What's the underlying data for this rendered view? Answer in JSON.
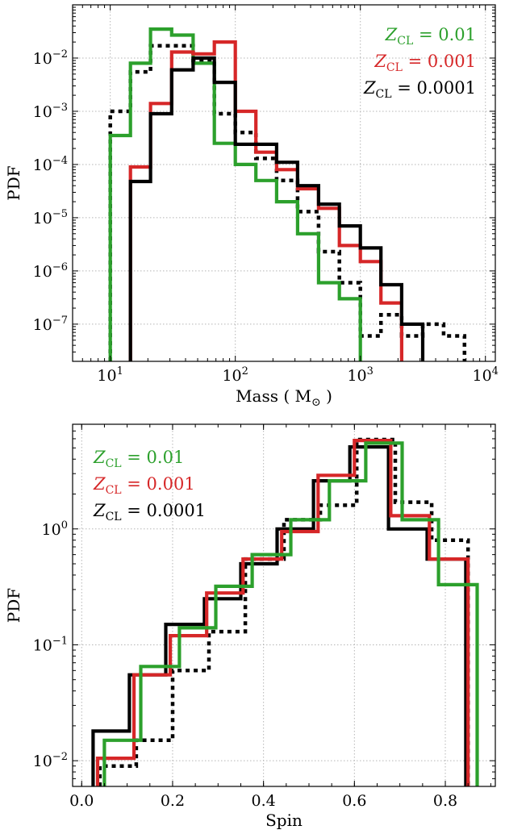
{
  "chart_data": [
    {
      "type": "line",
      "subtype": "step-histogram",
      "xlabel": "Mass ( M",
      "xlabel_sub": "⊙",
      "xlabel_close": " )",
      "ylabel": "PDF",
      "xscale": "log",
      "yscale": "log",
      "xlim": [
        5,
        12000
      ],
      "ylim": [
        2e-08,
        0.1
      ],
      "xticks": [
        {
          "value": 10,
          "mant": "10",
          "exp": "1"
        },
        {
          "value": 100,
          "mant": "10",
          "exp": "2"
        },
        {
          "value": 1000,
          "mant": "10",
          "exp": "3"
        },
        {
          "value": 10000,
          "mant": "10",
          "exp": "4"
        }
      ],
      "yticks": [
        {
          "value": 1e-07,
          "mant": "10",
          "exp": "−7"
        },
        {
          "value": 1e-06,
          "mant": "10",
          "exp": "−6"
        },
        {
          "value": 1e-05,
          "mant": "10",
          "exp": "−5"
        },
        {
          "value": 0.0001,
          "mant": "10",
          "exp": "−4"
        },
        {
          "value": 0.001,
          "mant": "10",
          "exp": "−3"
        },
        {
          "value": 0.01,
          "mant": "10",
          "exp": "−2"
        }
      ],
      "grid": true,
      "legend_position": "top-right",
      "series": [
        {
          "name": "Z_CL = 0.0001",
          "label_main": "Z",
          "label_sub": "CL",
          "label_rest": " = 0.0001",
          "color": "#000000",
          "dash": "solid",
          "edges": [
            14.5,
            21,
            31,
            46,
            68,
            100,
            146,
            214,
            315,
            463,
            680,
            1000,
            1460,
            2140,
            3150
          ],
          "values": [
            4.8e-05,
            0.0009,
            0.006,
            0.01,
            0.0035,
            0.00024,
            0.00024,
            0.00011,
            4e-05,
            1.8e-05,
            7e-06,
            2.7e-06,
            5.5e-07,
            1e-07
          ]
        },
        {
          "name": "Z_CL = 0.001",
          "label_main": "Z",
          "label_sub": "CL",
          "label_rest": " = 0.001",
          "color": "#d62728",
          "dash": "solid",
          "edges": [
            14.5,
            21,
            31,
            46,
            68,
            100,
            146,
            214,
            315,
            463,
            680,
            1000,
            1460,
            2140
          ],
          "values": [
            9e-05,
            0.0014,
            0.013,
            0.012,
            0.02,
            0.001,
            0.00017,
            8e-05,
            3.5e-05,
            1.5e-05,
            3e-06,
            1.5e-06,
            2.5e-07
          ]
        },
        {
          "name": "Z_CL = 0.01",
          "label_main": "Z",
          "label_sub": "CL",
          "label_rest": " = 0.01",
          "color": "#2ca02c",
          "dash": "solid",
          "edges": [
            10,
            14.5,
            21,
            31,
            46,
            68,
            100,
            146,
            214,
            315,
            463,
            680,
            1000
          ],
          "values": [
            0.00035,
            0.008,
            0.035,
            0.027,
            0.008,
            0.00025,
            0.0001,
            5e-05,
            2e-05,
            5e-06,
            6e-07,
            3e-07
          ]
        },
        {
          "name": "",
          "color": "#000000",
          "dash": "dotted",
          "edges": [
            10,
            14.5,
            21,
            31,
            46,
            68,
            100,
            146,
            214,
            315,
            463,
            680,
            1000,
            1460,
            2140,
            3150,
            4630,
            6800
          ],
          "values": [
            0.001,
            0.0055,
            0.017,
            0.017,
            0.009,
            0.0009,
            0.0004,
            0.00013,
            5e-05,
            1.3e-05,
            2.3e-06,
            6e-07,
            6e-08,
            1.5e-07,
            6e-08,
            1e-07,
            6e-08
          ]
        }
      ]
    },
    {
      "type": "line",
      "subtype": "step-histogram",
      "xlabel": "Spin",
      "ylabel": "PDF",
      "xscale": "linear",
      "yscale": "log",
      "xlim": [
        -0.02,
        0.91
      ],
      "ylim": [
        0.006,
        8
      ],
      "xticks": [
        {
          "value": 0.0,
          "label": "0.0"
        },
        {
          "value": 0.2,
          "label": "0.2"
        },
        {
          "value": 0.4,
          "label": "0.4"
        },
        {
          "value": 0.6,
          "label": "0.6"
        },
        {
          "value": 0.8,
          "label": "0.8"
        }
      ],
      "yticks": [
        {
          "value": 0.01,
          "mant": "10",
          "exp": "−2"
        },
        {
          "value": 0.1,
          "mant": "10",
          "exp": "−1"
        },
        {
          "value": 1,
          "mant": "10",
          "exp": "0"
        }
      ],
      "grid": true,
      "legend_position": "top-left",
      "series": [
        {
          "name": "Z_CL = 0.01",
          "label_main": "Z",
          "label_sub": "CL",
          "label_rest": " = 0.01",
          "color": "#2ca02c",
          "dash": "solid",
          "edges": [
            0.05,
            0.13,
            0.215,
            0.295,
            0.375,
            0.46,
            0.545,
            0.625,
            0.705,
            0.785,
            0.87
          ],
          "values": [
            0.015,
            0.065,
            0.14,
            0.32,
            0.6,
            1.2,
            2.6,
            5.5,
            1.2,
            0.33
          ]
        },
        {
          "name": "Z_CL = 0.001",
          "label_main": "Z",
          "label_sub": "CL",
          "label_rest": " = 0.001",
          "color": "#d62728",
          "dash": "solid",
          "edges": [
            0.035,
            0.115,
            0.195,
            0.275,
            0.355,
            0.44,
            0.52,
            0.6,
            0.68,
            0.765,
            0.85
          ],
          "values": [
            0.0105,
            0.055,
            0.12,
            0.28,
            0.55,
            0.95,
            2.9,
            5.8,
            1.3,
            0.55
          ]
        },
        {
          "name": "Z_CL = 0.0001",
          "label_main": "Z",
          "label_sub": "CL",
          "label_rest": " = 0.0001",
          "color": "#000000",
          "dash": "solid",
          "edges": [
            0.025,
            0.105,
            0.185,
            0.27,
            0.35,
            0.43,
            0.51,
            0.59,
            0.675,
            0.76,
            0.845
          ],
          "values": [
            0.018,
            0.055,
            0.15,
            0.25,
            0.5,
            1.0,
            2.6,
            5.1,
            1.0,
            0.55
          ]
        },
        {
          "name": "",
          "color": "#000000",
          "dash": "dotted",
          "edges": [
            0.04,
            0.12,
            0.2,
            0.28,
            0.36,
            0.445,
            0.525,
            0.605,
            0.69,
            0.77,
            0.85
          ],
          "values": [
            0.009,
            0.015,
            0.06,
            0.13,
            0.55,
            1.2,
            1.6,
            5.9,
            1.7,
            0.8
          ]
        }
      ]
    }
  ]
}
